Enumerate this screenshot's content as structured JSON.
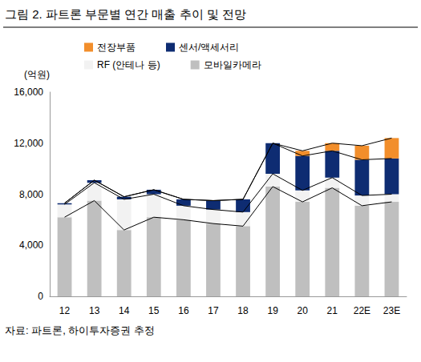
{
  "chart_data": {
    "type": "bar",
    "title": "그림 2. 파트론 부문별 연간 매출 추이 및 전망",
    "y_label": "(억원)",
    "source": "자료: 파트론, 하이투자증권 추정",
    "stacked": true,
    "grid": false,
    "legend": "top-left",
    "categories": [
      "12",
      "13",
      "14",
      "15",
      "16",
      "17",
      "18",
      "19",
      "20",
      "21",
      "22E",
      "23E"
    ],
    "series": [
      {
        "name": "모바일카메라",
        "color": "#bfbfbf",
        "values": [
          6200,
          7500,
          5200,
          6200,
          6000,
          5700,
          5500,
          8600,
          7400,
          8500,
          7100,
          7400
        ]
      },
      {
        "name": "RF (안테나 등)",
        "color": "#f2f2f2",
        "values": [
          1000,
          1400,
          2400,
          1800,
          1100,
          1100,
          1100,
          1000,
          900,
          800,
          800,
          600
        ]
      },
      {
        "name": "센서/액세서리",
        "color": "#0e2c72",
        "values": [
          100,
          200,
          200,
          350,
          500,
          700,
          1000,
          2400,
          2700,
          2100,
          2800,
          2800
        ]
      },
      {
        "name": "전장부품",
        "color": "#f28e2b",
        "values": [
          0,
          0,
          0,
          0,
          0,
          0,
          0,
          0,
          400,
          600,
          1100,
          1600
        ]
      }
    ],
    "ylim": [
      0,
      16000
    ],
    "yticks": [
      0,
      {
        "value": 4000,
        "label": "4,000"
      },
      {
        "value": 8000,
        "label": "8,000"
      },
      {
        "value": 12000,
        "label": "12,000"
      },
      {
        "value": 16000,
        "label": "16,000"
      }
    ]
  }
}
